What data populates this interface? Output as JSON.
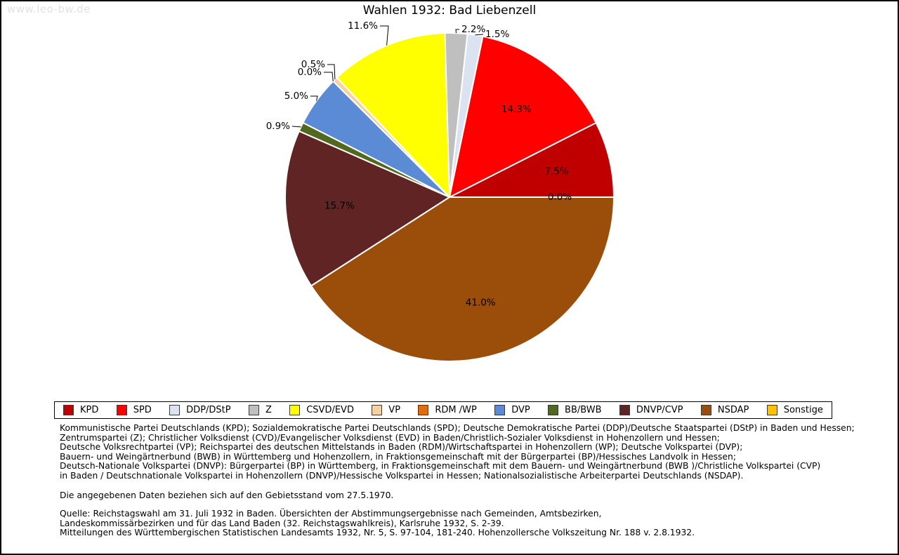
{
  "watermark": "www.leo-bw.de",
  "title": "Wahlen 1932: Bad Liebenzell",
  "chart_data": {
    "type": "pie",
    "title": "Wahlen 1932: Bad Liebenzell",
    "start_angle_deg": 0,
    "direction": "counterclockwise",
    "value_unit": "%",
    "slices": [
      {
        "party": "KPD",
        "percent": 7.5,
        "color": "#c00000",
        "label": "7.5%",
        "label_pos": "inside"
      },
      {
        "party": "SPD",
        "percent": 14.3,
        "color": "#ff0000",
        "label": "14.3%",
        "label_pos": "inside"
      },
      {
        "party": "DDP/DStP",
        "percent": 1.5,
        "color": "#dbe3f1",
        "label": "1.5%",
        "label_pos": "outside"
      },
      {
        "party": "Z",
        "percent": 2.2,
        "color": "#bfbfbf",
        "label": "2.2%",
        "label_pos": "outside"
      },
      {
        "party": "CSVD/EVD",
        "percent": 11.6,
        "color": "#ffff00",
        "label": "11.6%",
        "label_pos": "outside"
      },
      {
        "party": "VP",
        "percent": 0.5,
        "color": "#f6cfa2",
        "label": "0.5%",
        "label_pos": "outside"
      },
      {
        "party": "RDM /WP",
        "percent": 0.0,
        "color": "#e36c09",
        "label": "0.0%",
        "label_pos": "outside"
      },
      {
        "party": "DVP",
        "percent": 5.0,
        "color": "#5b8bd5",
        "label": "5.0%",
        "label_pos": "outside"
      },
      {
        "party": "BB/BWB",
        "percent": 0.9,
        "color": "#50691e",
        "label": "0.9%",
        "label_pos": "outside"
      },
      {
        "party": "DNVP/CVP",
        "percent": 15.7,
        "color": "#5f2423",
        "label": "15.7%",
        "label_pos": "inside"
      },
      {
        "party": "NSDAP",
        "percent": 41.0,
        "color": "#9b4e09",
        "label": "41.0%",
        "label_pos": "inside"
      },
      {
        "party": "Sonstige",
        "percent": 0.0,
        "color": "#ffc000",
        "label": "0.0%",
        "label_pos": "inside"
      }
    ],
    "legend_position": "bottom",
    "edge_color": "#ffffff"
  },
  "notes": {
    "party_definitions": [
      "Kommunistische Partei Deutschlands (KPD); Sozialdemokratische Partei Deutschlands (SPD); Deutsche Demokratische Partei (DDP)/Deutsche Staatspartei (DStP) in Baden und Hessen;",
      "Zentrumspartei (Z); Christlicher Volksdienst (CVD)/Evangelischer Volksdienst (EVD) in Baden/Christlich-Sozialer Volksdienst in Hohenzollern und Hessen;",
      "Deutsche Volksrechtpartei (VP); Reichspartei des deutschen Mittelstands in Baden (RDM)/Wirtschaftspartei in Hohenzollern (WP); Deutsche Volkspartei (DVP);",
      "Bauern- und Weingärtnerbund (BWB) in Württemberg und Hohenzollern, in Fraktionsgemeinschaft mit der Bürgerpartei (BP)/Hessisches Landvolk in Hessen;",
      "Deutsch-Nationale Volkspartei (DNVP): Bürgerpartei (BP) in Württemberg, in Fraktionsgemeinschaft mit dem Bauern- und Weingärtnerbund (BWB )/Christliche Volkspartei (CVP)",
      "in Baden / Deutschnationale Volkspartei in Hohenzollern (DNVP)/Hessische Volkspartei in Hessen; Nationalsozialistische Arbeiterpartei Deutschlands (NSDAP)."
    ],
    "territorial_note": "Die angegebenen Daten beziehen sich auf den Gebietsstand vom 27.5.1970.",
    "source_lines": [
      "Quelle: Reichstagswahl am 31. Juli 1932 in Baden. Übersichten der Abstimmungsergebnisse nach Gemeinden, Amtsbezirken,",
      "Landeskommissärbezirken und für das Land Baden (32. Reichstagswahlkreis), Karlsruhe 1932, S. 2-39.",
      "Mitteilungen des Württembergischen Statistischen Landesamts 1932, Nr. 5, S. 97-104, 181-240. Hohenzollersche Volkszeitung Nr. 188 v. 2.8.1932."
    ]
  }
}
